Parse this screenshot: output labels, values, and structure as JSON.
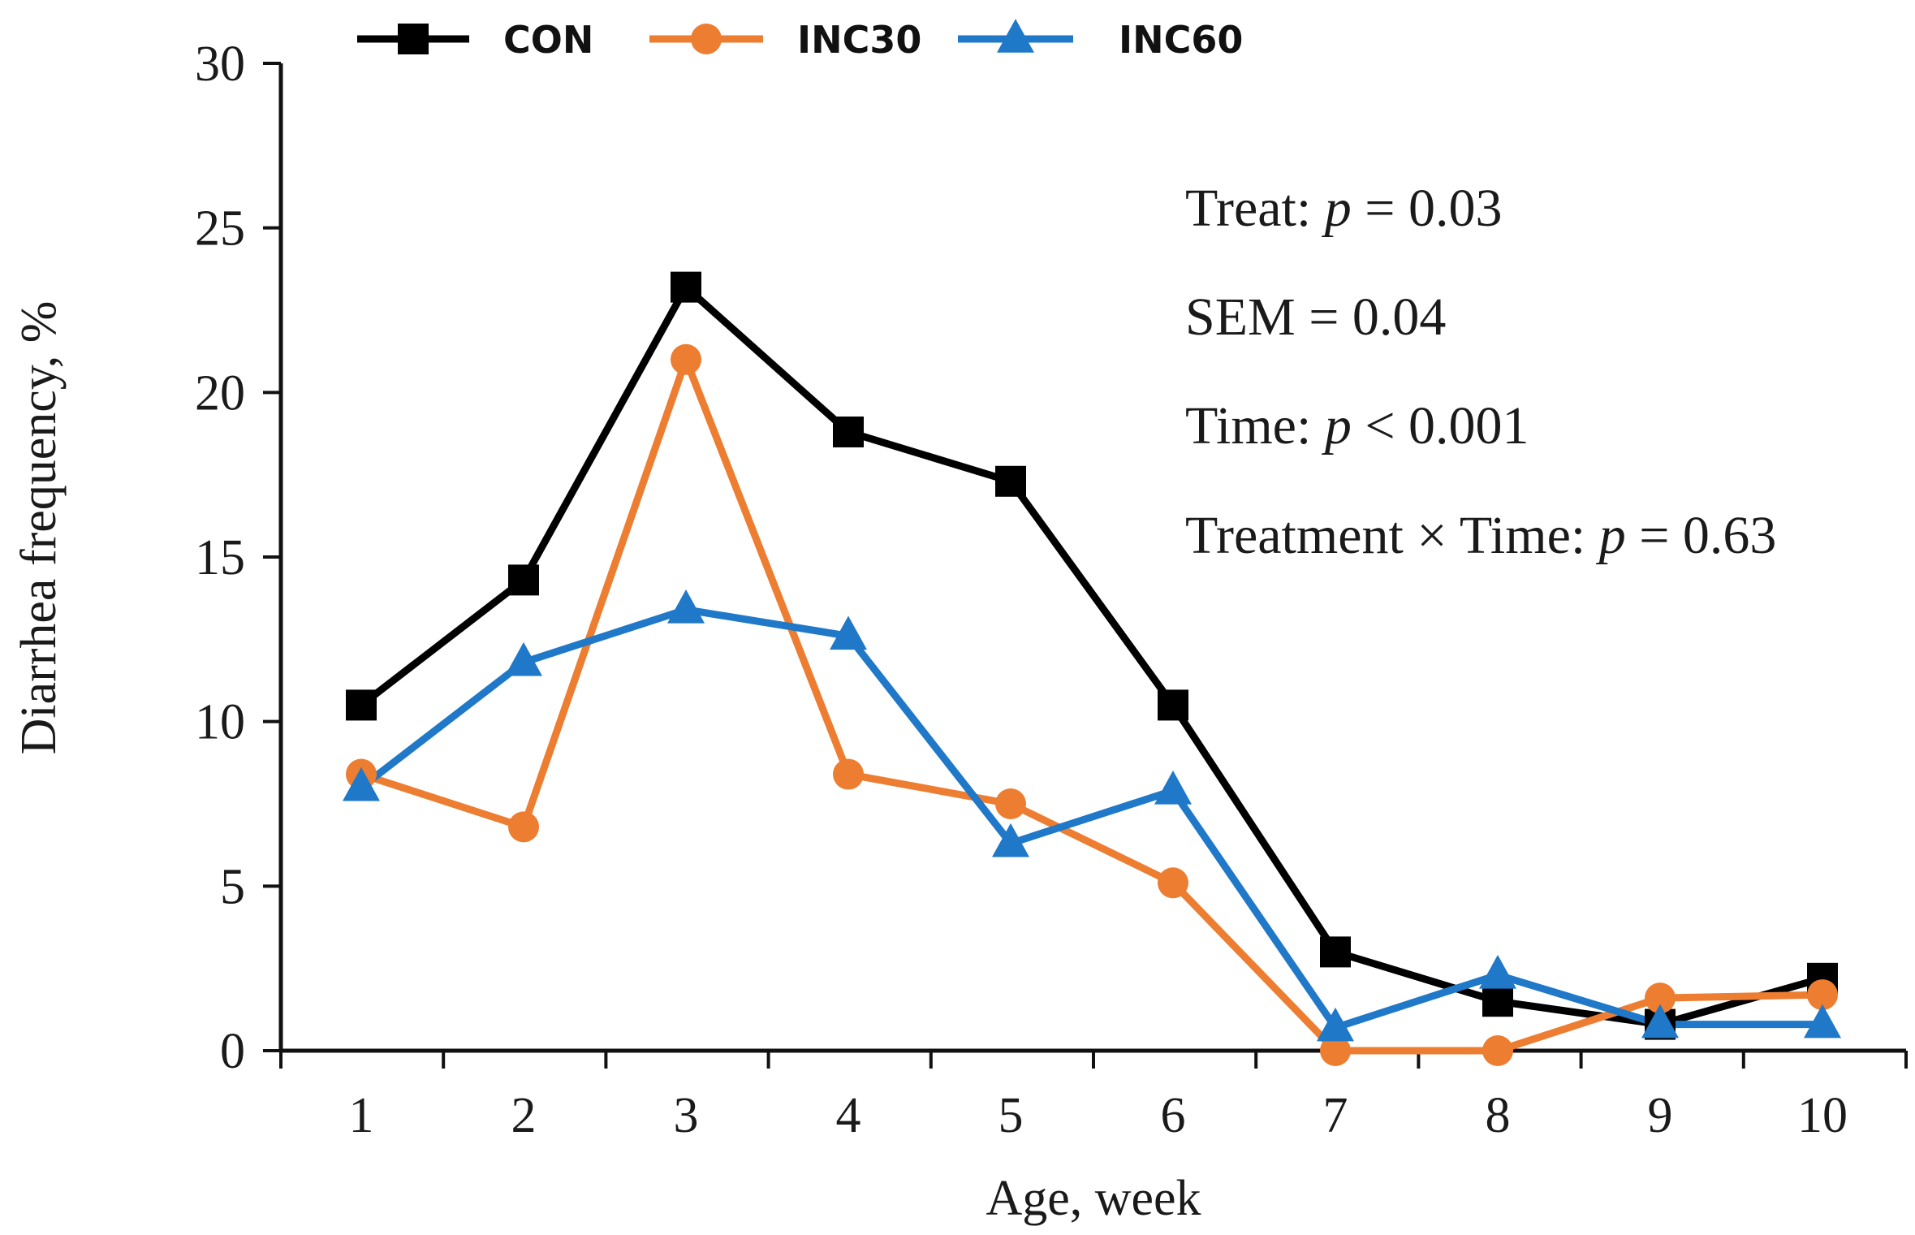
{
  "chart_data": {
    "type": "line",
    "title": "",
    "xlabel": "Age, week",
    "ylabel": "Diarrhea frequency, %",
    "x": [
      1,
      2,
      3,
      4,
      5,
      6,
      7,
      8,
      9,
      10
    ],
    "x_tick_labels": [
      "1",
      "2",
      "3",
      "4",
      "5",
      "6",
      "7",
      "8",
      "9",
      "10"
    ],
    "ylim": [
      0,
      30
    ],
    "y_ticks": [
      0,
      5,
      10,
      15,
      20,
      25,
      30
    ],
    "y_tick_labels": [
      "0",
      "5",
      "10",
      "15",
      "20",
      "25",
      "30"
    ],
    "grid": false,
    "legend_position": "top-left",
    "series": [
      {
        "name": "CON",
        "color": "#000000",
        "marker": "square",
        "values": [
          10.5,
          14.3,
          23.2,
          18.8,
          17.3,
          10.5,
          3.0,
          1.5,
          0.8,
          2.2
        ]
      },
      {
        "name": "INC30",
        "color": "#ED7D31",
        "marker": "circle",
        "values": [
          8.4,
          6.8,
          21.0,
          8.4,
          7.5,
          5.1,
          0.0,
          0.0,
          1.6,
          1.7
        ]
      },
      {
        "name": "INC60",
        "color": "#1F78C8",
        "marker": "triangle",
        "values": [
          8.0,
          11.8,
          13.4,
          12.6,
          6.3,
          7.9,
          0.7,
          2.3,
          0.8,
          0.8
        ]
      }
    ],
    "annotations": {
      "treat_label": "Treat: ",
      "treat_p": "p",
      "treat_value": " = 0.03",
      "sem_text": "SEM = 0.04",
      "time_label": "Time: ",
      "time_p": "p",
      "time_value": " < 0.001",
      "interaction_label": "Treatment × Time: ",
      "interaction_p": "p",
      "interaction_value": " = 0.63"
    }
  }
}
